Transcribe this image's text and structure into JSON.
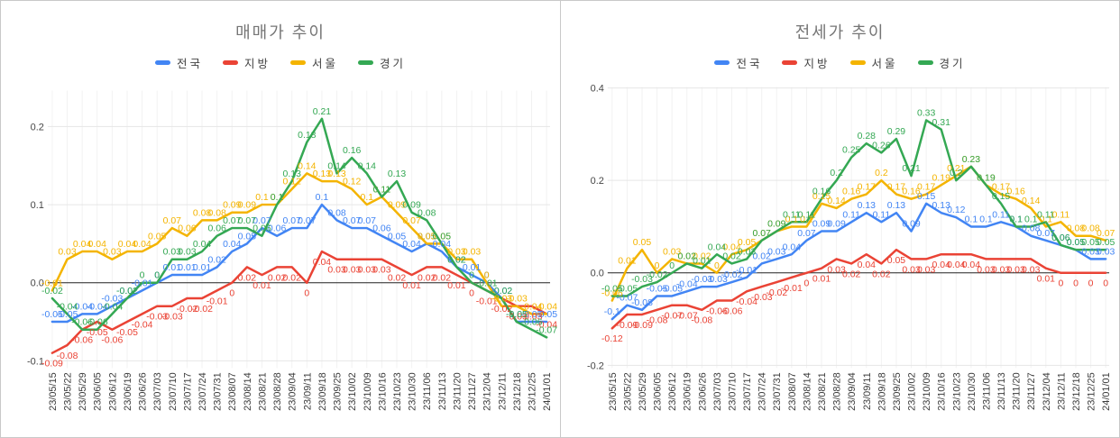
{
  "chart_data": [
    {
      "type": "line",
      "title": "매매가 추이",
      "legend_position": "top",
      "grid": true,
      "xlabel": "",
      "ylabel": "",
      "ylim": [
        -0.1,
        0.2
      ],
      "y_ticks": [
        {
          "value": 0.2,
          "label": "0.2"
        },
        {
          "value": 0.1,
          "label": "0.1"
        },
        {
          "value": 0.0,
          "label": "0.0"
        },
        {
          "value": -0.1,
          "label": "-0.1"
        }
      ],
      "categories": [
        "23/05/15",
        "23/05/22",
        "23/05/29",
        "23/06/05",
        "23/06/12",
        "23/06/19",
        "23/06/26",
        "23/07/03",
        "23/07/10",
        "23/07/17",
        "23/07/24",
        "23/07/31",
        "23/08/07",
        "23/08/14",
        "23/08/21",
        "23/08/28",
        "23/09/04",
        "23/09/11",
        "23/09/18",
        "23/09/25",
        "23/10/02",
        "23/10/09",
        "23/10/16",
        "23/10/23",
        "23/10/30",
        "23/11/06",
        "23/11/13",
        "23/11/20",
        "23/11/27",
        "23/12/04",
        "23/12/11",
        "23/12/18",
        "23/12/25",
        "24/01/01"
      ],
      "series": [
        {
          "name": "전국",
          "key": "national",
          "color": "#4285F4",
          "values": [
            -0.05,
            -0.05,
            -0.04,
            -0.04,
            -0.03,
            -0.02,
            -0.01,
            0,
            0.01,
            0.01,
            0.01,
            0.02,
            0.04,
            0.05,
            0.07,
            0.06,
            0.07,
            0.07,
            0.1,
            0.08,
            0.07,
            0.07,
            0.06,
            0.05,
            0.04,
            0.05,
            0.04,
            0.02,
            0.01,
            0,
            -0.02,
            -0.05,
            -0.05,
            -0.05
          ]
        },
        {
          "name": "지방",
          "key": "regional",
          "color": "#EA4335",
          "values": [
            -0.09,
            -0.08,
            -0.06,
            -0.05,
            -0.06,
            -0.05,
            -0.04,
            -0.03,
            -0.03,
            -0.02,
            -0.02,
            -0.01,
            0,
            0.02,
            0.01,
            0.02,
            0.02,
            0,
            0.04,
            0.03,
            0.03,
            0.03,
            0.03,
            0.02,
            0.01,
            0.02,
            0.02,
            0.01,
            0,
            -0.01,
            -0.02,
            -0.03,
            -0.03,
            -0.04
          ]
        },
        {
          "name": "서울",
          "key": "seoul",
          "color": "#F4B400",
          "values": [
            -0.01,
            0.03,
            0.04,
            0.04,
            0.03,
            0.04,
            0.04,
            0.05,
            0.07,
            0.06,
            0.08,
            0.08,
            0.09,
            0.09,
            0.1,
            0.1,
            0.12,
            0.14,
            0.13,
            0.13,
            0.12,
            0.1,
            0.11,
            0.09,
            0.07,
            0.05,
            0.05,
            0.03,
            0.03,
            0,
            -0.03,
            -0.03,
            -0.04,
            -0.04
          ]
        },
        {
          "name": "경기",
          "key": "gyeonggi",
          "color": "#34A853",
          "values": [
            -0.02,
            -0.04,
            -0.06,
            -0.06,
            -0.04,
            -0.02,
            0,
            0,
            0.03,
            0.03,
            0.04,
            0.06,
            0.07,
            0.07,
            0.06,
            0.1,
            0.13,
            0.18,
            0.21,
            0.14,
            0.16,
            0.14,
            0.11,
            0.13,
            0.09,
            0.08,
            0.05,
            0.02,
            0,
            -0.01,
            -0.02,
            -0.05,
            -0.06,
            -0.07
          ]
        }
      ]
    },
    {
      "type": "line",
      "title": "전세가 추이",
      "legend_position": "top",
      "grid": true,
      "xlabel": "",
      "ylabel": "",
      "ylim": [
        -0.2,
        0.4
      ],
      "y_ticks": [
        {
          "value": 0.4,
          "label": "0.4"
        },
        {
          "value": 0.2,
          "label": "0.2"
        },
        {
          "value": 0.0,
          "label": "0.0"
        },
        {
          "value": -0.2,
          "label": "-0.2"
        }
      ],
      "categories": [
        "23/05/15",
        "23/05/22",
        "23/05/29",
        "23/06/05",
        "23/06/12",
        "23/06/19",
        "23/06/26",
        "23/07/03",
        "23/07/10",
        "23/07/17",
        "23/07/24",
        "23/07/31",
        "23/08/07",
        "23/08/14",
        "23/08/21",
        "23/08/28",
        "23/09/04",
        "23/09/11",
        "23/09/18",
        "23/09/25",
        "23/10/02",
        "23/10/09",
        "23/10/16",
        "23/10/23",
        "23/10/30",
        "23/11/06",
        "23/11/13",
        "23/11/20",
        "23/11/27",
        "23/12/04",
        "23/12/11",
        "23/12/18",
        "23/12/25",
        "24/01/01"
      ],
      "series": [
        {
          "name": "전국",
          "key": "national",
          "color": "#4285F4",
          "values": [
            -0.1,
            -0.07,
            -0.08,
            -0.05,
            -0.05,
            -0.04,
            -0.03,
            -0.03,
            -0.02,
            -0.01,
            0.02,
            0.03,
            0.04,
            0.07,
            0.09,
            0.09,
            0.11,
            0.13,
            0.11,
            0.13,
            0.09,
            0.15,
            0.13,
            0.12,
            0.1,
            0.1,
            0.11,
            0.1,
            0.08,
            0.07,
            0.06,
            0.05,
            0.03,
            0.03
          ]
        },
        {
          "name": "지방",
          "key": "regional",
          "color": "#EA4335",
          "values": [
            -0.12,
            -0.09,
            -0.09,
            -0.08,
            -0.07,
            -0.07,
            -0.08,
            -0.06,
            -0.06,
            -0.04,
            -0.03,
            -0.02,
            -0.01,
            0,
            0.01,
            0.03,
            0.02,
            0.04,
            0.02,
            0.05,
            0.03,
            0.03,
            0.04,
            0.04,
            0.04,
            0.03,
            0.03,
            0.03,
            0.03,
            0.01,
            0,
            0,
            0,
            0
          ]
        },
        {
          "name": "서울",
          "key": "seoul",
          "color": "#F4B400",
          "values": [
            -0.06,
            0.01,
            0.05,
            0,
            0.03,
            0.02,
            0.02,
            0,
            0.04,
            0.05,
            0.07,
            0.09,
            0.1,
            0.1,
            0.15,
            0.14,
            0.16,
            0.17,
            0.2,
            0.17,
            0.16,
            0.17,
            0.19,
            0.21,
            0.23,
            0.19,
            0.17,
            0.16,
            0.14,
            0.1,
            0.11,
            0.08,
            0.08,
            0.07
          ]
        },
        {
          "name": "경기",
          "key": "gyeonggi",
          "color": "#34A853",
          "values": [
            -0.05,
            -0.05,
            -0.03,
            -0.02,
            0,
            0.02,
            0.01,
            0.04,
            0.02,
            0.03,
            0.07,
            0.09,
            0.11,
            0.11,
            0.16,
            0.2,
            0.25,
            0.28,
            0.26,
            0.29,
            0.21,
            0.33,
            0.31,
            0.2,
            0.23,
            0.19,
            0.15,
            0.1,
            0.1,
            0.11,
            0.06,
            0.05,
            0.05,
            0.05
          ]
        }
      ]
    }
  ]
}
